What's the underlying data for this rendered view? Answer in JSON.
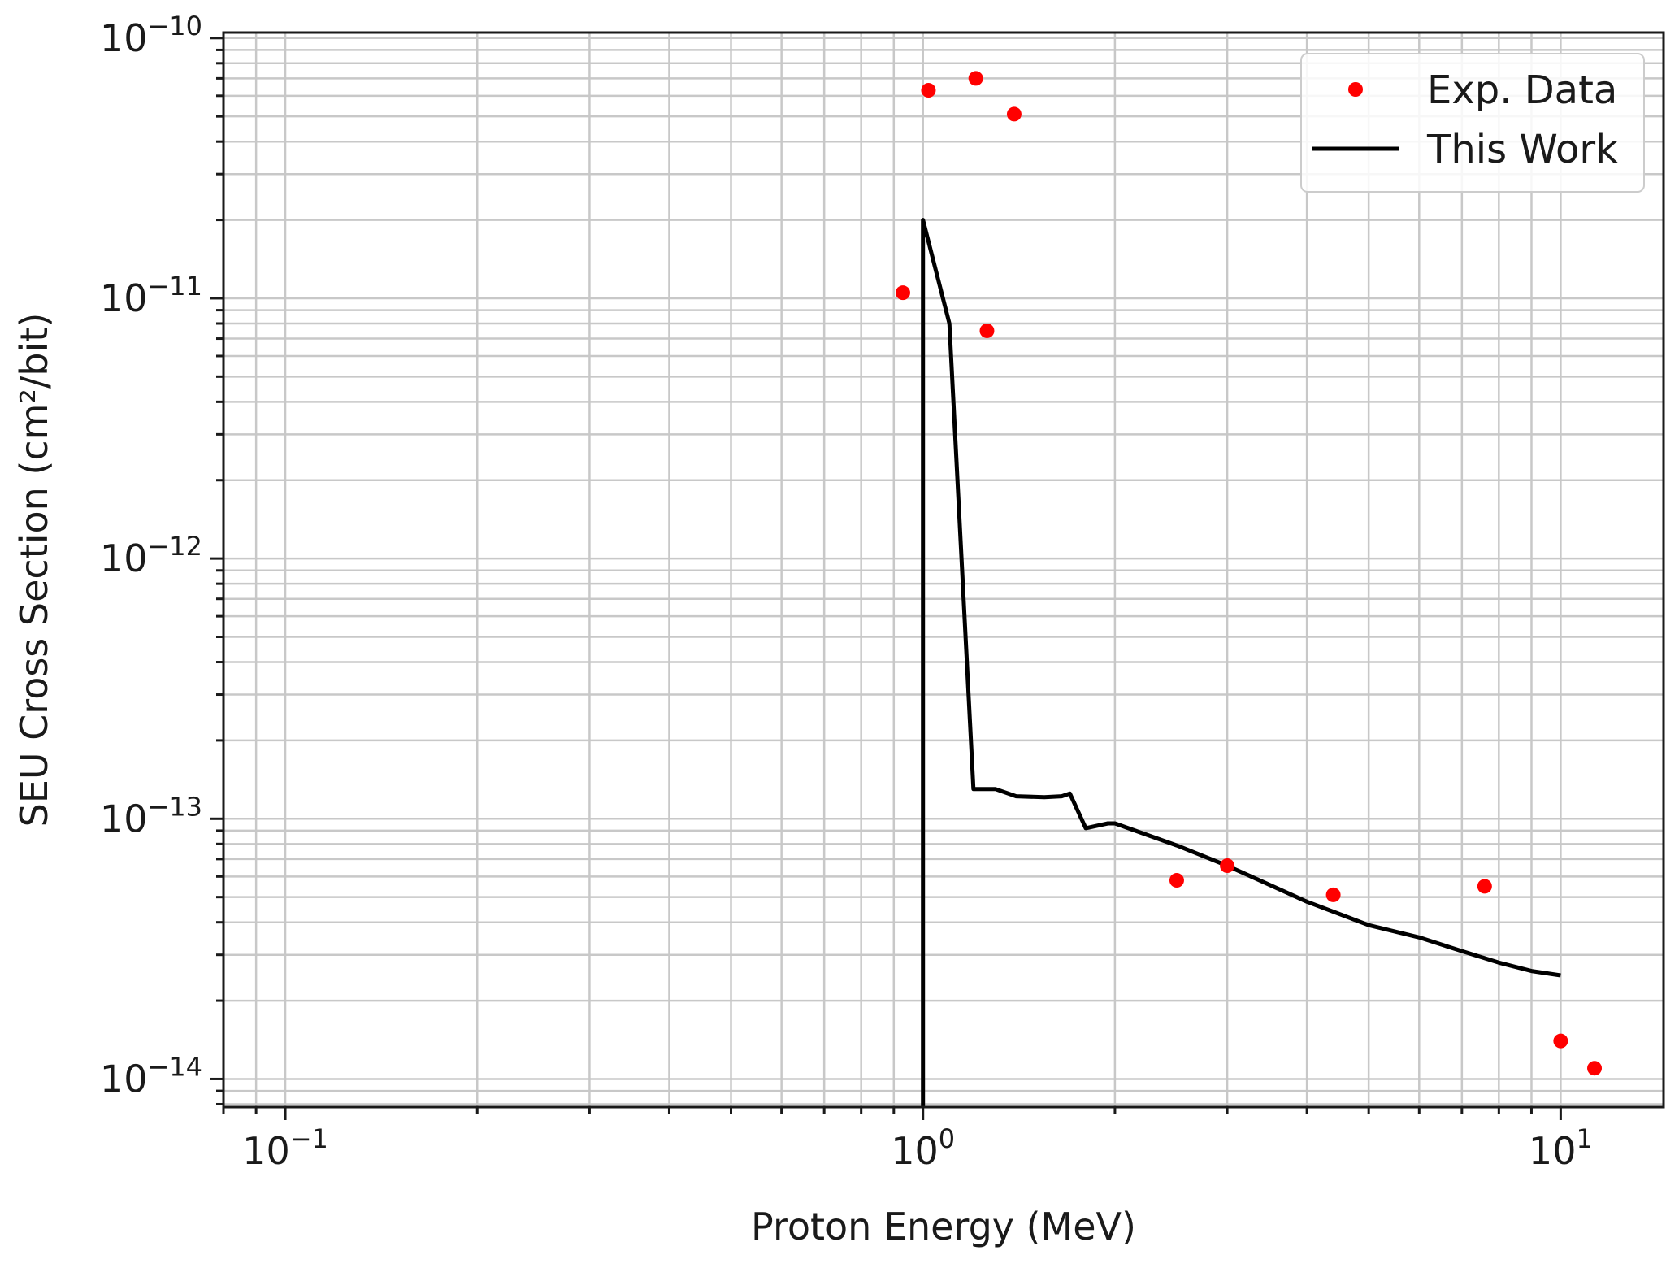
{
  "chart_data": {
    "type": "scatter",
    "title": "",
    "xlabel": "Proton Energy (MeV)",
    "ylabel": "SEU Cross Section (cm²/bit)",
    "xscale": "log",
    "yscale": "log",
    "xlim": [
      0.08,
      14.5
    ],
    "ylim": [
      7.8e-15,
      1.05e-10
    ],
    "grid": true,
    "legend_position": "top-right",
    "x_ticks": [
      {
        "value": 0.1,
        "base": "10",
        "exp": "−1"
      },
      {
        "value": 1,
        "base": "10",
        "exp": "0"
      },
      {
        "value": 10,
        "base": "10",
        "exp": "1"
      }
    ],
    "y_ticks": [
      {
        "value": 1e-10,
        "base": "10",
        "exp": "−10"
      },
      {
        "value": 1e-11,
        "base": "10",
        "exp": "−11"
      },
      {
        "value": 1e-12,
        "base": "10",
        "exp": "−12"
      },
      {
        "value": 1e-13,
        "base": "10",
        "exp": "−13"
      },
      {
        "value": 1e-14,
        "base": "10",
        "exp": "−14"
      }
    ],
    "series": [
      {
        "name": "Exp. Data",
        "kind": "scatter",
        "color": "#ff0000",
        "points": [
          {
            "x": 0.93,
            "y": 1.05e-11
          },
          {
            "x": 1.02,
            "y": 6.3e-11
          },
          {
            "x": 1.21,
            "y": 7e-11
          },
          {
            "x": 1.26,
            "y": 7.5e-12
          },
          {
            "x": 1.39,
            "y": 5.1e-11
          },
          {
            "x": 2.5,
            "y": 5.8e-14
          },
          {
            "x": 3.0,
            "y": 6.6e-14
          },
          {
            "x": 4.4,
            "y": 5.1e-14
          },
          {
            "x": 7.6,
            "y": 5.5e-14
          },
          {
            "x": 10.0,
            "y": 1.4e-14
          },
          {
            "x": 11.3,
            "y": 1.1e-14
          }
        ]
      },
      {
        "name": "This Work",
        "kind": "line",
        "color": "#000000",
        "points": [
          {
            "x": 1.0,
            "y": 7.8e-15
          },
          {
            "x": 1.0,
            "y": 2e-11
          },
          {
            "x": 1.1,
            "y": 8e-12
          },
          {
            "x": 1.2,
            "y": 1.3e-13
          },
          {
            "x": 1.3,
            "y": 1.3e-13
          },
          {
            "x": 1.4,
            "y": 1.22e-13
          },
          {
            "x": 1.55,
            "y": 1.21e-13
          },
          {
            "x": 1.65,
            "y": 1.22e-13
          },
          {
            "x": 1.7,
            "y": 1.25e-13
          },
          {
            "x": 1.8,
            "y": 9.2e-14
          },
          {
            "x": 1.95,
            "y": 9.6e-14
          },
          {
            "x": 2.0,
            "y": 9.6e-14
          },
          {
            "x": 2.5,
            "y": 7.9e-14
          },
          {
            "x": 3.0,
            "y": 6.6e-14
          },
          {
            "x": 4.0,
            "y": 4.8e-14
          },
          {
            "x": 5.0,
            "y": 3.9e-14
          },
          {
            "x": 6.0,
            "y": 3.5e-14
          },
          {
            "x": 7.0,
            "y": 3.1e-14
          },
          {
            "x": 8.0,
            "y": 2.8e-14
          },
          {
            "x": 9.0,
            "y": 2.6e-14
          },
          {
            "x": 10.0,
            "y": 2.5e-14
          }
        ]
      }
    ]
  }
}
